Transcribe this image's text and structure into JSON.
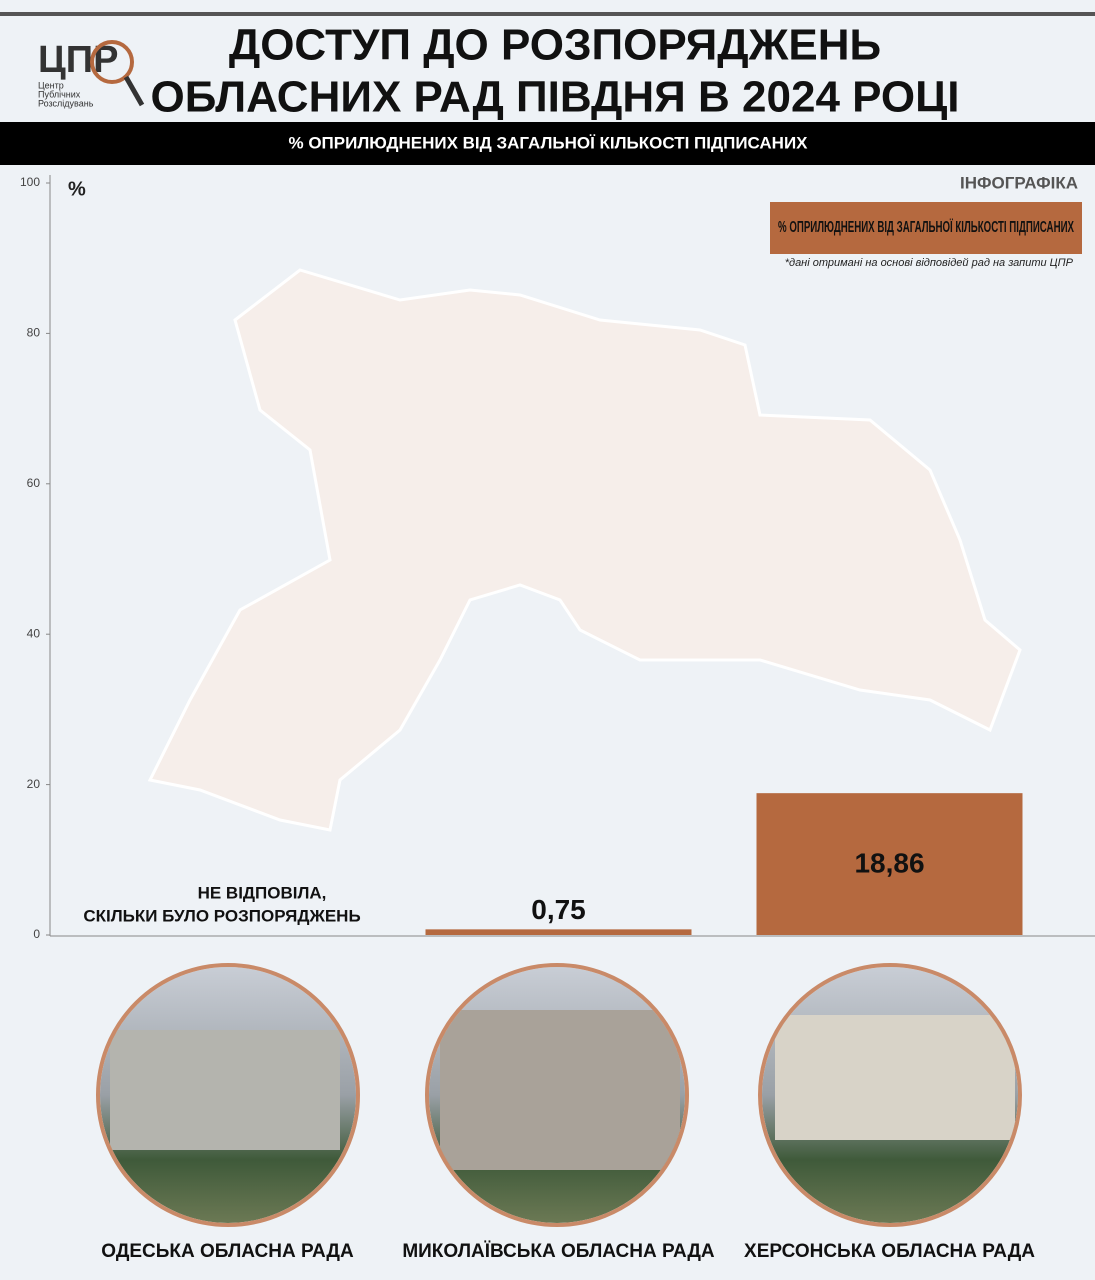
{
  "chart_data": {
    "type": "bar",
    "title": [
      "ДОСТУП ДО РОЗПОРЯДЖЕНЬ",
      "ОБЛАСНИХ РАД ПІВДНЯ В 2024 РОЦІ"
    ],
    "subtitle": "% ОПРИЛЮДНЕНИХ ВІД ЗАГАЛЬНОЇ КІЛЬКОСТІ ПІДПИСАНИХ",
    "logo": {
      "mark": "ЦПР",
      "name": [
        "Центр",
        "Публічних",
        "Розслідувань"
      ]
    },
    "label": "ІНФОГРАФІКА",
    "note": "*дані отримані на основі відповідей рад на запити ЦПР",
    "y_label": "%",
    "categories": [
      "ОДЕСЬКА ОБЛАСНА РАДА",
      "МИКОЛАЇВСЬКА ОБЛАСНА РАДА",
      "ХЕРСОНСЬКА ОБЛАСНА РАДА"
    ],
    "series": [
      {
        "name": "% ОПРИЛЮДНЕНИХ ВІД ЗАГАЛЬНОЇ КІЛЬКОСТІ ПІДПИСАНИХ",
        "color": "#b5693f",
        "values": [
          null,
          0.75,
          18.86
        ],
        "value_labels": [
          null,
          "0,75",
          "18,86"
        ]
      }
    ],
    "annotation": [
      "НЕ ВІДПОВІЛА,",
      "СКІЛЬКИ БУЛО РОЗПОРЯДЖЕНЬ"
    ],
    "ylim": [
      0,
      100
    ],
    "yticks": [
      0,
      20,
      40,
      60,
      80,
      100
    ],
    "legend": "top-right"
  }
}
